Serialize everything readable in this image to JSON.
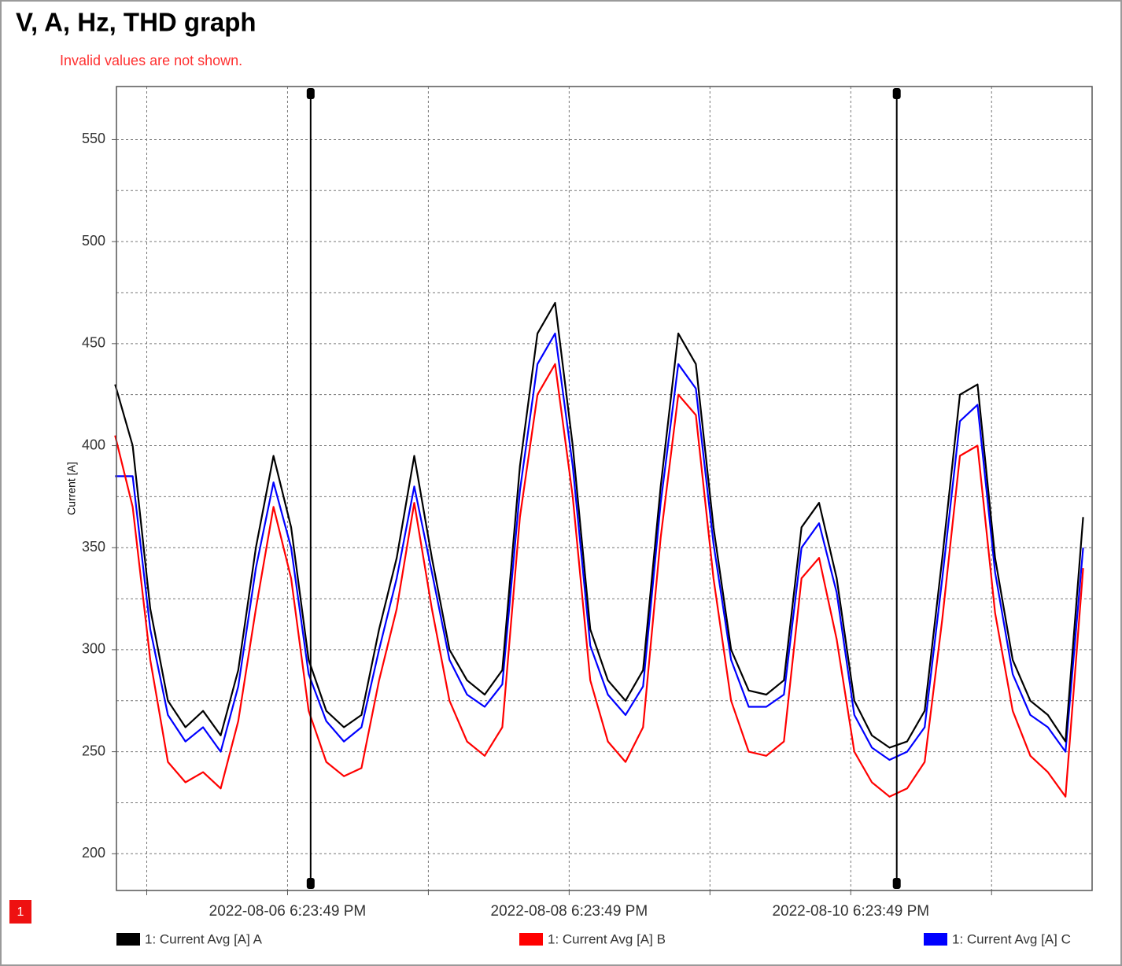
{
  "chart_data": {
    "type": "line",
    "title": "V, A, Hz, THD graph",
    "note": "Invalid values are not shown.",
    "badge": "1",
    "ylabel": "Current [A]",
    "x": [
      "2022-08-05 13:00",
      "2022-08-05 16:00",
      "2022-08-05 19:00",
      "2022-08-05 22:00",
      "2022-08-06 01:00",
      "2022-08-06 04:00",
      "2022-08-06 07:00",
      "2022-08-06 10:00",
      "2022-08-06 13:00",
      "2022-08-06 16:00",
      "2022-08-06 19:00",
      "2022-08-06 22:00",
      "2022-08-07 01:00",
      "2022-08-07 04:00",
      "2022-08-07 07:00",
      "2022-08-07 10:00",
      "2022-08-07 13:00",
      "2022-08-07 16:00",
      "2022-08-07 19:00",
      "2022-08-07 22:00",
      "2022-08-08 01:00",
      "2022-08-08 04:00",
      "2022-08-08 07:00",
      "2022-08-08 10:00",
      "2022-08-08 13:00",
      "2022-08-08 16:00",
      "2022-08-08 19:00",
      "2022-08-08 22:00",
      "2022-08-09 01:00",
      "2022-08-09 04:00",
      "2022-08-09 07:00",
      "2022-08-09 10:00",
      "2022-08-09 13:00",
      "2022-08-09 16:00",
      "2022-08-09 19:00",
      "2022-08-09 22:00",
      "2022-08-10 01:00",
      "2022-08-10 04:00",
      "2022-08-10 07:00",
      "2022-08-10 10:00",
      "2022-08-10 13:00",
      "2022-08-10 16:00",
      "2022-08-10 19:00",
      "2022-08-10 22:00",
      "2022-08-11 01:00",
      "2022-08-11 04:00",
      "2022-08-11 07:00",
      "2022-08-11 10:00",
      "2022-08-11 13:00",
      "2022-08-11 16:00",
      "2022-08-11 19:00",
      "2022-08-11 22:00",
      "2022-08-12 01:00",
      "2022-08-12 04:00",
      "2022-08-12 07:00",
      "2022-08-12 10:00"
    ],
    "series": [
      {
        "name": "1: Current Avg [A] A",
        "color": "#000000",
        "values": [
          430,
          400,
          320,
          275,
          262,
          270,
          258,
          290,
          350,
          395,
          360,
          295,
          270,
          262,
          268,
          310,
          345,
          395,
          345,
          300,
          285,
          278,
          290,
          390,
          455,
          470,
          400,
          310,
          285,
          275,
          290,
          380,
          455,
          440,
          360,
          300,
          280,
          278,
          285,
          360,
          372,
          335,
          275,
          258,
          252,
          255,
          270,
          345,
          425,
          430,
          345,
          295,
          275,
          268,
          255,
          365
        ]
      },
      {
        "name": "1: Current Avg [A] B",
        "color": "#ff0000",
        "values": [
          405,
          370,
          295,
          245,
          235,
          240,
          232,
          265,
          320,
          370,
          335,
          270,
          245,
          238,
          242,
          285,
          320,
          372,
          320,
          275,
          255,
          248,
          262,
          365,
          425,
          440,
          375,
          285,
          255,
          245,
          262,
          355,
          425,
          415,
          335,
          275,
          250,
          248,
          255,
          335,
          345,
          305,
          250,
          235,
          228,
          232,
          245,
          315,
          395,
          400,
          318,
          270,
          248,
          240,
          228,
          340
        ]
      },
      {
        "name": "1: Current Avg [A] C",
        "color": "#0000ff",
        "values": [
          385,
          385,
          310,
          268,
          255,
          262,
          250,
          282,
          340,
          382,
          350,
          288,
          265,
          255,
          262,
          300,
          335,
          380,
          338,
          295,
          278,
          272,
          283,
          378,
          440,
          455,
          390,
          302,
          278,
          268,
          282,
          372,
          440,
          428,
          352,
          295,
          272,
          272,
          278,
          350,
          362,
          328,
          268,
          252,
          246,
          250,
          262,
          335,
          412,
          420,
          338,
          288,
          268,
          262,
          250,
          350
        ]
      }
    ],
    "draw_order": [
      2,
      1,
      0
    ],
    "xlim": [
      "2022-08-05 13:14:00",
      "2022-08-12 11:32:00"
    ],
    "xticks": [
      {
        "value": "2022-08-06 18:23:49",
        "label": "2022-08-06 6:23:49 PM"
      },
      {
        "value": "2022-08-08 18:23:49",
        "label": "2022-08-08 6:23:49 PM"
      },
      {
        "value": "2022-08-10 18:23:49",
        "label": "2022-08-10 6:23:49 PM"
      }
    ],
    "xticks_minor": [
      "2022-08-05 18:23:49",
      "2022-08-07 18:23:49",
      "2022-08-09 18:23:49",
      "2022-08-11 18:23:49"
    ],
    "cursors": [
      "2022-08-06 22:20:00",
      "2022-08-11 02:14:00"
    ],
    "ylim": [
      182,
      576
    ],
    "yticks": [
      200,
      250,
      300,
      350,
      400,
      450,
      500,
      550
    ],
    "yticks_minor": [
      225,
      275,
      325,
      375,
      425,
      475,
      525
    ],
    "grid": true
  }
}
